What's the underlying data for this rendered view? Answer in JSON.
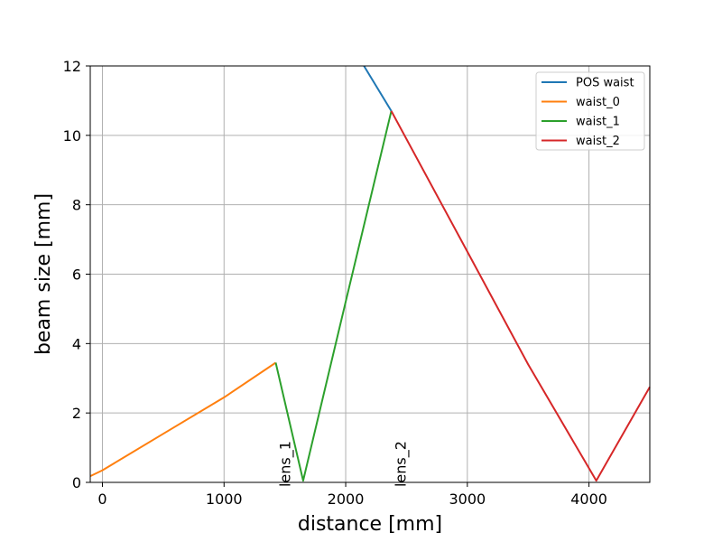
{
  "chart_data": {
    "type": "line",
    "title": "",
    "xlabel": "distance [mm]",
    "ylabel": "beam size [mm]",
    "xlim": [
      -100,
      4500
    ],
    "ylim": [
      0,
      12
    ],
    "xticks": [
      0,
      1000,
      2000,
      3000,
      4000
    ],
    "yticks": [
      0,
      2,
      4,
      6,
      8,
      10,
      12
    ],
    "xtick_labels": [
      "0",
      "1000",
      "2000",
      "3000",
      "4000"
    ],
    "ytick_labels": [
      "0",
      "2",
      "4",
      "6",
      "8",
      "10",
      "12"
    ],
    "grid": true,
    "legend_position": "top-right",
    "series": [
      {
        "name": "POS waist",
        "color": "#1f77b4",
        "points": [
          [
            2150,
            12.0
          ],
          [
            2375,
            10.7
          ]
        ]
      },
      {
        "name": "waist_0",
        "color": "#ff7f0e",
        "points": [
          [
            -100,
            0.18
          ],
          [
            0,
            0.35
          ],
          [
            500,
            1.4
          ],
          [
            1000,
            2.45
          ],
          [
            1425,
            3.45
          ]
        ]
      },
      {
        "name": "waist_1",
        "color": "#2ca02c",
        "points": [
          [
            1425,
            3.45
          ],
          [
            1650,
            0.05
          ],
          [
            2000,
            5.2
          ],
          [
            2375,
            10.7
          ]
        ]
      },
      {
        "name": "waist_2",
        "color": "#d62728",
        "points": [
          [
            2375,
            10.7
          ],
          [
            3000,
            6.65
          ],
          [
            3500,
            3.4
          ],
          [
            4060,
            0.05
          ],
          [
            4500,
            2.75
          ]
        ]
      }
    ],
    "annotations": [
      {
        "text": "lens_1",
        "x": 1425
      },
      {
        "text": "lens_2",
        "x": 2375
      }
    ]
  }
}
